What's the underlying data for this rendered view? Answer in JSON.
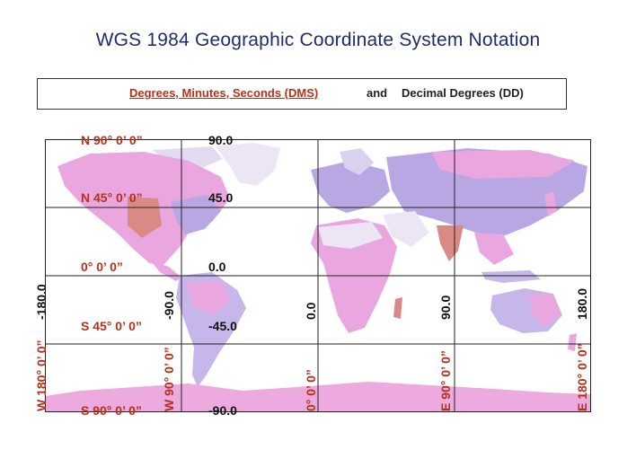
{
  "title": "WGS 1984 Geographic Coordinate System Notation",
  "legend": {
    "dms": "Degrees, Minutes, Seconds (DMS)",
    "and": "and",
    "dd": "Decimal Degrees (DD)"
  },
  "latitude_labels": {
    "n90_dms": "N 90° 0’ 0”",
    "n90_dd": "90.0",
    "n45_dms": "N 45° 0’ 0”",
    "n45_dd": "45.0",
    "eq_dms": "0° 0’ 0”",
    "eq_dd": "0.0",
    "s45_dms": "S 45° 0’ 0”",
    "s45_dd": "-45.0",
    "s90_dms": "S 90° 0’ 0”",
    "s90_dd": "-90.0"
  },
  "longitude_labels": {
    "w180_dms": "W 180° 0’ 0”",
    "w180_dd": "-180.0",
    "w90_dms": "W 90° 0’ 0”",
    "w90_dd": "-90.0",
    "pm_dms": "0° 0’ 0”",
    "pm_dd": "0.0",
    "e90_dms": "E 90° 0’ 0”",
    "e90_dd": "90.0",
    "e180_dms": "E 180° 0’ 0”",
    "e180_dd": "180.0"
  },
  "colors": {
    "title": "#1f2d6e",
    "dms": "#b5311a",
    "dd": "#111111",
    "ocean": "#ffffff",
    "land_pink": "#e9a6df",
    "land_lavender": "#b9a7e4",
    "land_light": "#d9d2ef",
    "land_salmon": "#d98a86",
    "ice": "#ece6f4",
    "antarctica": "#ecaade"
  }
}
